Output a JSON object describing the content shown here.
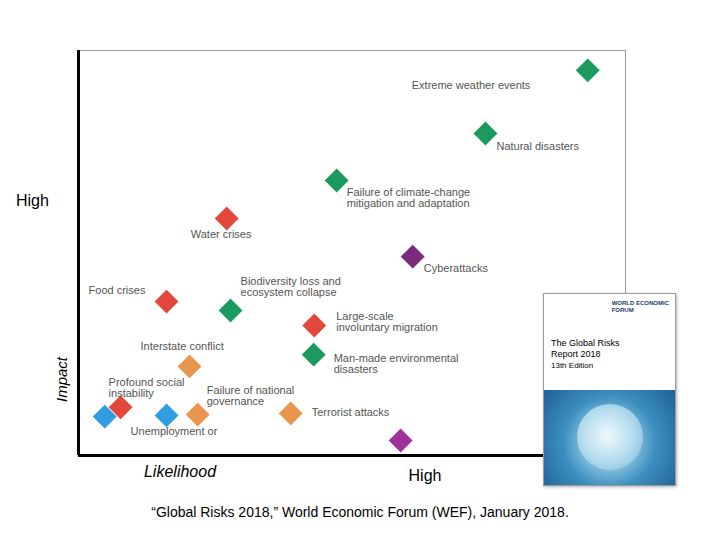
{
  "chart_data": {
    "type": "scatter",
    "x_label": "Likelihood",
    "y_label": "Impact",
    "x_high_label": "High",
    "y_high_label": "High",
    "caption": "“Global Risks 2018,” World Economic Forum (WEF), January 2018.",
    "labels": [
      "Extreme weather events",
      "Natural disasters",
      "Failure of climate-change\nmitigation and adaptation",
      "Water crises",
      "Cyberattacks",
      "Food crises",
      "Biodiversity loss and\necosystem collapse",
      "Large-scale\ninvoluntary migration",
      "Man-made environmental\ndisasters",
      "Interstate conflict",
      "Profound social\ninstability",
      "Failure of national\ngovernance",
      "Terrorist attacks",
      null,
      "Unemployment or",
      null
    ],
    "x": [
      93.1,
      74.4,
      47.2,
      27.1,
      61.1,
      16.1,
      27.8,
      43.1,
      43.0,
      20.3,
      7.7,
      21.8,
      38.8,
      4.8,
      16.1,
      58.9
    ],
    "values": [
      95.1,
      79.5,
      67.9,
      58.5,
      49.1,
      38.0,
      35.8,
      32.1,
      24.9,
      22.0,
      11.9,
      10.1,
      10.4,
      9.6,
      9.9,
      3.7
    ],
    "colors": [
      "#1a9a5e",
      "#1a9a5e",
      "#1a9a5e",
      "#e2473b",
      "#7b2a7c",
      "#e2473b",
      "#1a9a5e",
      "#e2473b",
      "#1a9a5e",
      "#e8954f",
      "#e2473b",
      "#e8954f",
      "#e8954f",
      "#2f9de0",
      "#2f9de0",
      "#a0309a"
    ],
    "marker": "diamond",
    "xlim": [
      0,
      100
    ],
    "ylim": [
      0,
      100
    ],
    "tick_labels": false,
    "inset": {
      "publisher": "WORLD ECONOMIC\nFORUM",
      "title": "The Global Risks\nReport 2018",
      "edition": "13th Edition"
    }
  }
}
